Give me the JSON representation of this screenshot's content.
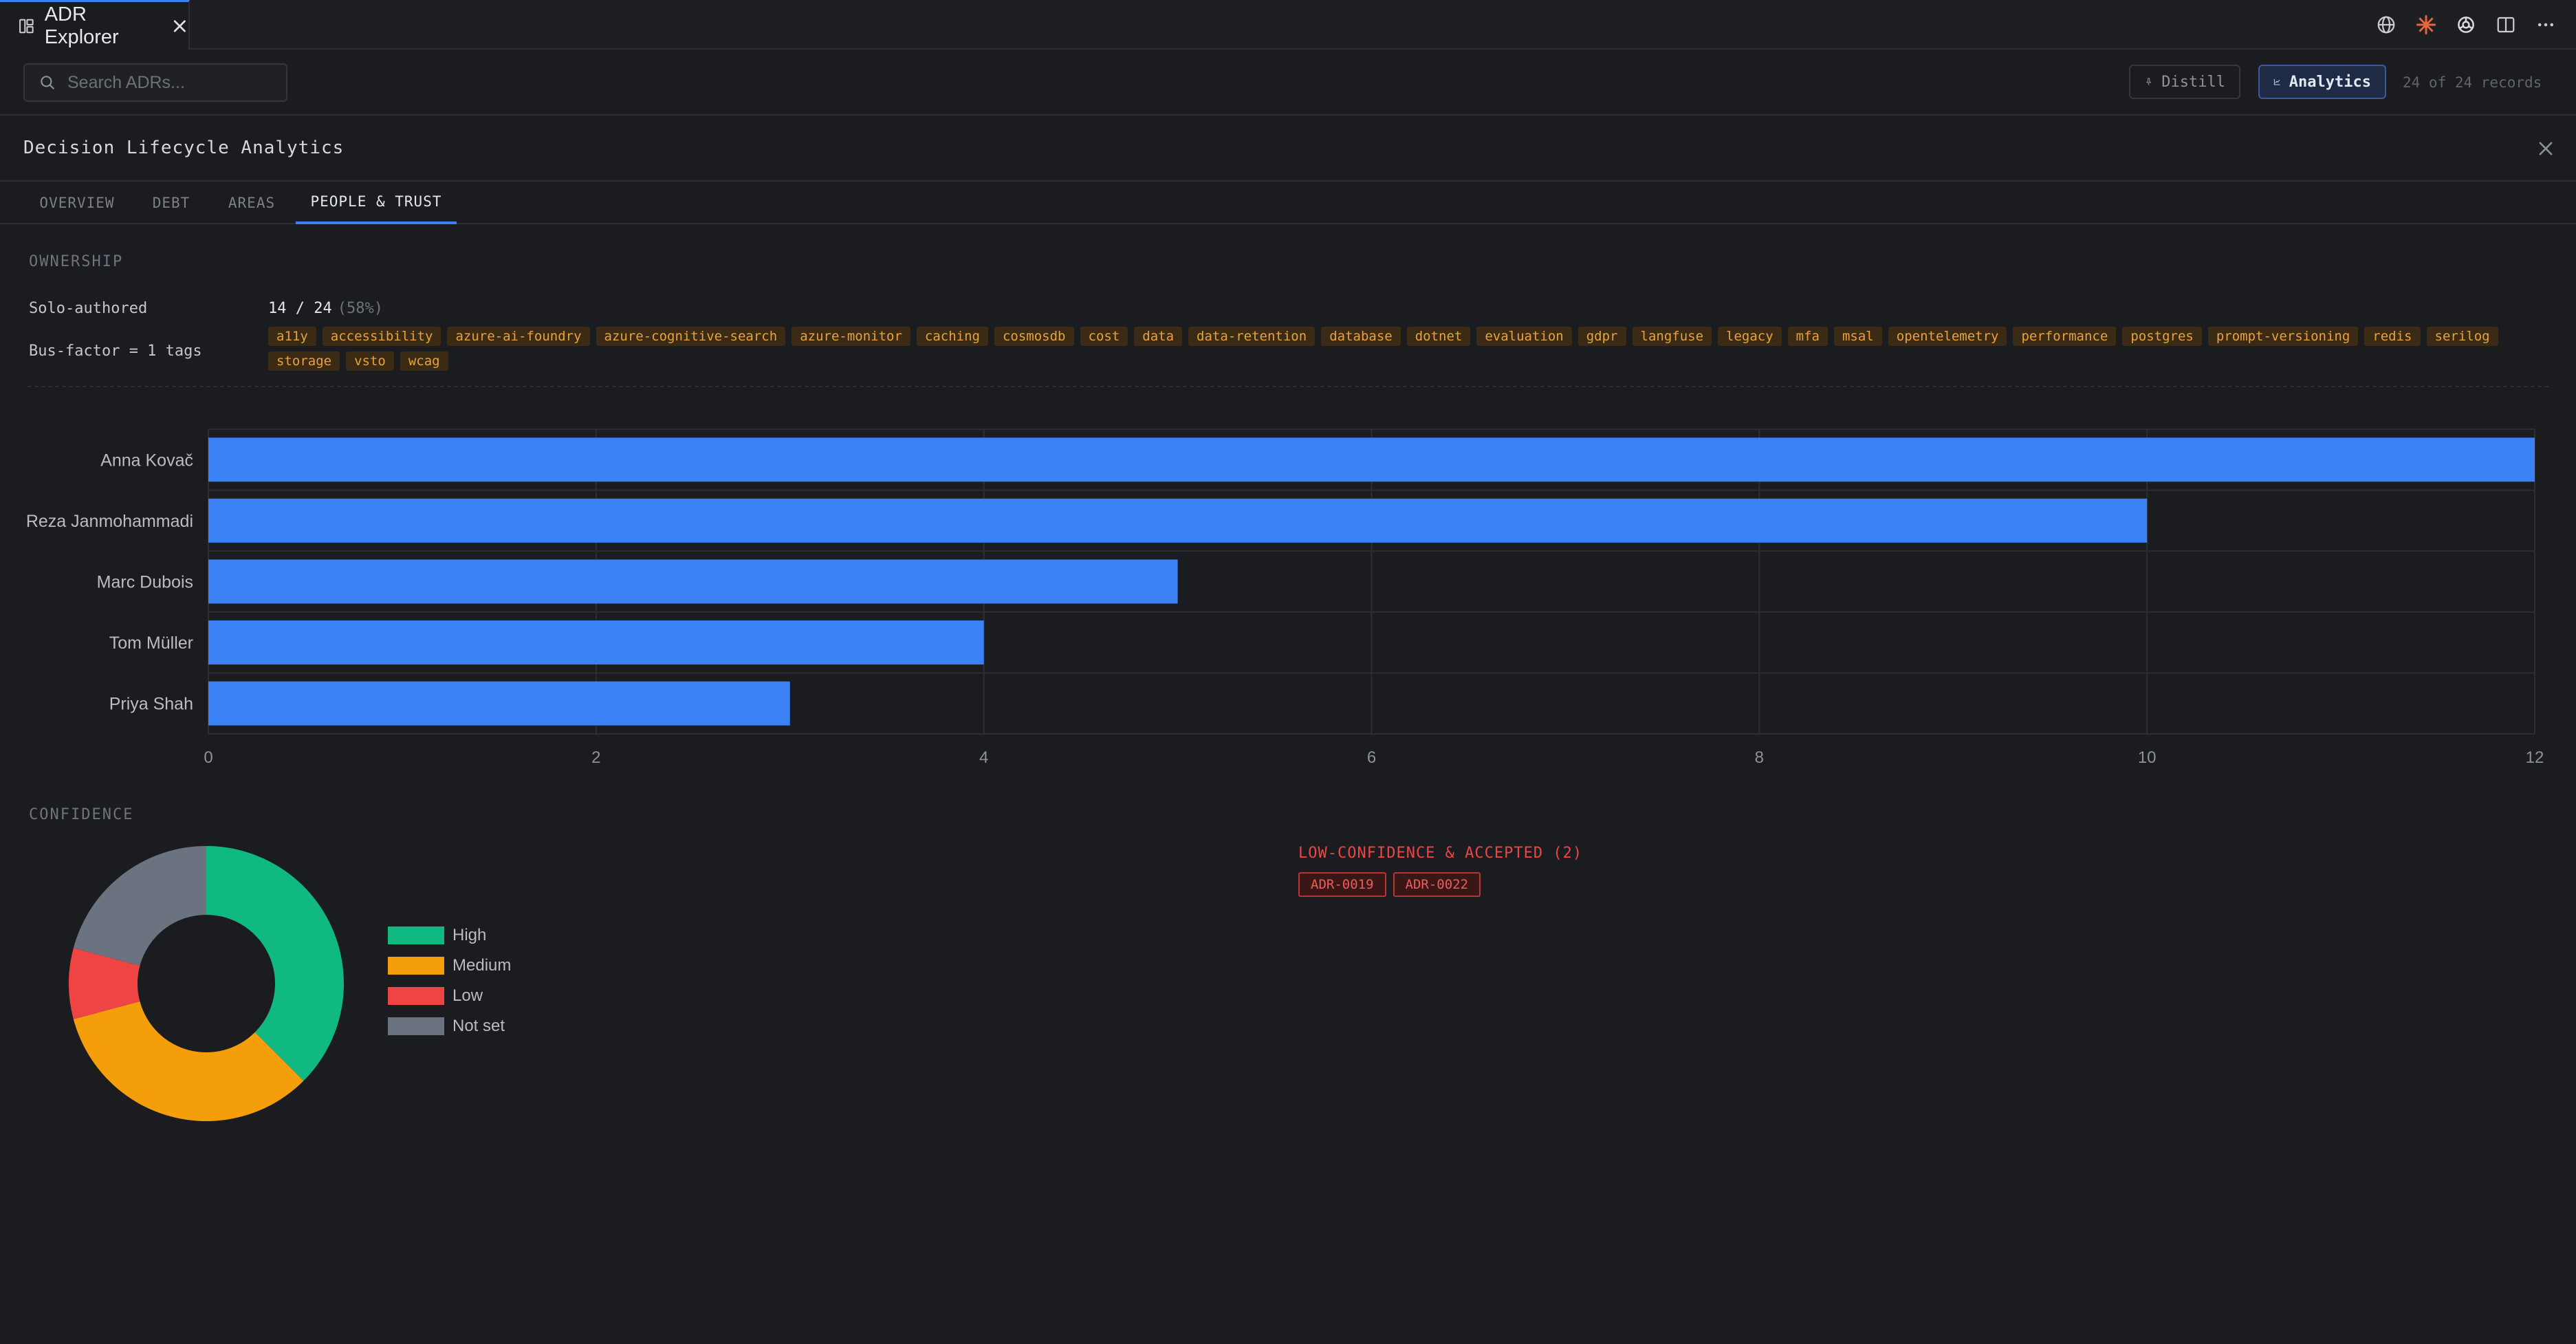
{
  "tab": {
    "title": "ADR Explorer"
  },
  "toolbar": {
    "search_placeholder": "Search ADRs...",
    "distill_label": "Distill",
    "analytics_label": "Analytics",
    "records_text": "24 of 24 records"
  },
  "panel": {
    "title": "Decision Lifecycle Analytics",
    "tabs": [
      "OVERVIEW",
      "DEBT",
      "AREAS",
      "PEOPLE & TRUST"
    ],
    "active_tab": "PEOPLE & TRUST"
  },
  "ownership": {
    "section_label": "OWNERSHIP",
    "solo_key": "Solo-authored",
    "solo_value": "14 / 24",
    "solo_pct": "(58%)",
    "busfactor_key": "Bus-factor = 1 tags",
    "tags": [
      "a11y",
      "accessibility",
      "azure-ai-foundry",
      "azure-cognitive-search",
      "azure-monitor",
      "caching",
      "cosmosdb",
      "cost",
      "data",
      "data-retention",
      "database",
      "dotnet",
      "evaluation",
      "gdpr",
      "langfuse",
      "legacy",
      "mfa",
      "msal",
      "opentelemetry",
      "performance",
      "postgres",
      "prompt-versioning",
      "redis",
      "serilog",
      "storage",
      "vsto",
      "wcag"
    ]
  },
  "chart_data": [
    {
      "type": "bar",
      "orientation": "horizontal",
      "categories": [
        "Anna Kovač",
        "Reza Janmohammadi",
        "Marc Dubois",
        "Tom Müller",
        "Priya Shah"
      ],
      "values": [
        12,
        10,
        5,
        4,
        3
      ],
      "xlim": [
        0,
        12
      ],
      "xticks": [
        0,
        2,
        4,
        6,
        8,
        10,
        12
      ],
      "grid": true,
      "color": "#3b82f6"
    },
    {
      "type": "pie",
      "donut": true,
      "categories": [
        "High",
        "Medium",
        "Low",
        "Not set"
      ],
      "values": [
        9,
        8,
        2,
        5
      ],
      "colors": [
        "#10b981",
        "#f59e0b",
        "#ef4444",
        "#6b7280"
      ],
      "legend": "right"
    }
  ],
  "confidence": {
    "section_label": "CONFIDENCE",
    "lowconf_title": "LOW-CONFIDENCE & ACCEPTED (2)",
    "adrs": [
      "ADR-0019",
      "ADR-0022"
    ]
  },
  "colors": {
    "accent": "#3b82f6",
    "tag_text": "#e7a23c",
    "warning": "#ef4444"
  },
  "icons": [
    "layout-icon",
    "close-icon",
    "globe-icon",
    "sparkle-icon",
    "openai-icon",
    "split-view-icon",
    "more-icon",
    "search-icon",
    "pin-icon",
    "chart-line-icon"
  ]
}
